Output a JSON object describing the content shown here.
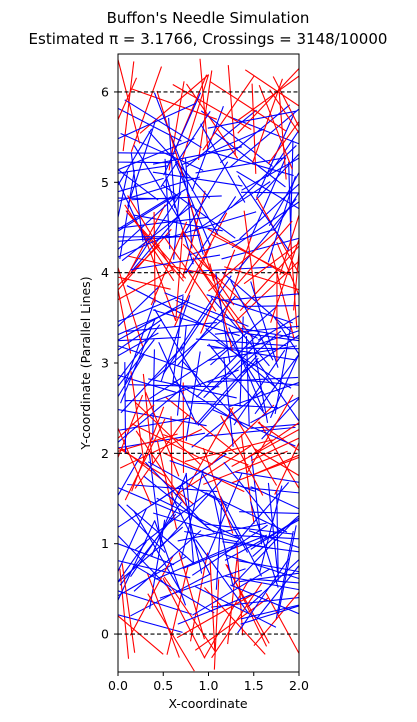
{
  "chart_data": {
    "type": "line",
    "title": "Buffon's Needle Simulation",
    "subtitle": "Estimated π = 3.1766, Crossings = 3148/10000",
    "xlabel": "X-coordinate",
    "ylabel": "Y-coordinate (Parallel Lines)",
    "xlim": [
      0.0,
      2.0
    ],
    "ylim": [
      -0.42,
      6.42
    ],
    "xticks": [
      "0.0",
      "0.5",
      "1.0",
      "1.5",
      "2.0"
    ],
    "yticks": [
      "0",
      "1",
      "2",
      "3",
      "4",
      "5",
      "6"
    ],
    "parallel_lines_y": [
      0,
      2,
      4,
      6
    ],
    "estimated_pi": 3.1766,
    "crossings": 3148,
    "total_needles": 10000,
    "grid": false,
    "colors": {
      "crossing": "#ff0000",
      "non_crossing": "#0000ff",
      "parallel_line": "#000000"
    },
    "needle_length": 1.0,
    "needle_sample_shown": 400
  }
}
